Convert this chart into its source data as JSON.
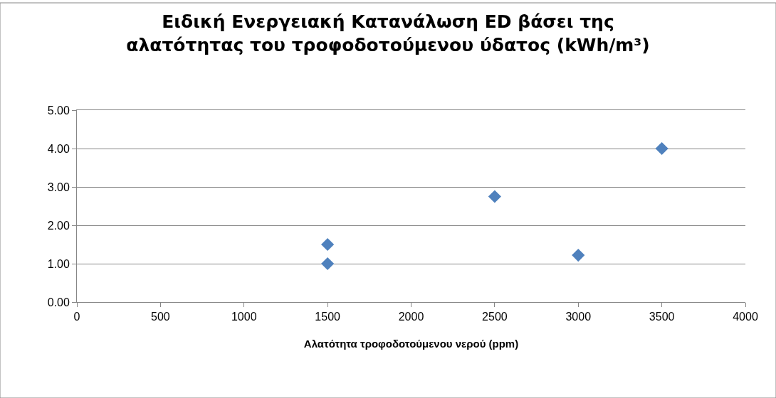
{
  "chart_data": {
    "type": "scatter",
    "title": "Ειδική Ενεργειακή Κατανάλωση ED βάσει της αλατότητας του τροφοδοτούμενου ύδατος (kWh/m³)",
    "xlabel": "Αλατότητα τροφοδοτούμενου νερού (ppm)",
    "series": [
      {
        "color": "#4f81bd",
        "x": [
          1500,
          1500,
          2500,
          3000,
          3500
        ],
        "values": [
          1.5,
          1.0,
          2.75,
          1.22,
          4.0
        ]
      }
    ],
    "xlim": [
      0,
      4000
    ],
    "xticks": [
      0,
      500,
      1000,
      1500,
      2000,
      2500,
      3000,
      3500,
      4000
    ],
    "ylim": [
      0,
      5
    ],
    "yticks": [
      {
        "value": 0,
        "label": "0.00"
      },
      {
        "value": 1,
        "label": "1.00"
      },
      {
        "value": 2,
        "label": "2.00"
      },
      {
        "value": 3,
        "label": "3.00"
      },
      {
        "value": 4,
        "label": "4.00"
      },
      {
        "value": 5,
        "label": "5.00"
      }
    ],
    "grid": "y",
    "marker": "diamond"
  }
}
